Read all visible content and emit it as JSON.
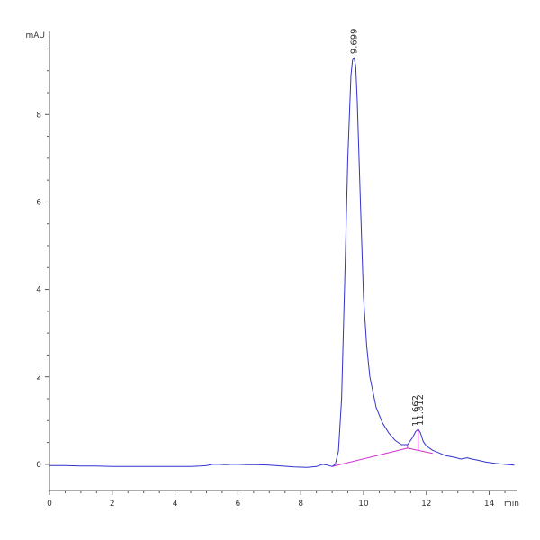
{
  "chart_data": {
    "type": "line",
    "title": "",
    "y_unit_label": "mAU",
    "x_unit_label": "min",
    "xlim": [
      0,
      14.9
    ],
    "ylim": [
      -0.6,
      9.9
    ],
    "x_ticks": [
      0,
      2,
      4,
      6,
      8,
      10,
      12,
      14
    ],
    "y_ticks": [
      0,
      2,
      4,
      6,
      8
    ],
    "grid": false,
    "colors": {
      "trace": "#3333cc",
      "baseline": "#cc33cc",
      "axis": "#555555"
    },
    "series": [
      {
        "x": [
          0,
          0.5,
          1,
          1.5,
          2,
          2.5,
          3,
          3.5,
          4,
          4.5,
          4.8,
          5.0,
          5.2,
          5.4,
          5.6,
          5.8,
          6.0,
          6.3,
          6.6,
          7.0,
          7.4,
          7.8,
          8.2,
          8.5,
          8.7,
          8.85,
          9.0,
          9.1,
          9.2,
          9.3,
          9.4,
          9.5,
          9.6,
          9.65,
          9.7,
          9.75,
          9.8,
          9.9,
          10.0,
          10.1,
          10.2,
          10.4,
          10.6,
          10.8,
          11.0,
          11.2,
          11.4,
          11.55,
          11.66,
          11.74,
          11.81,
          11.9,
          12.0,
          12.2,
          12.4,
          12.6,
          12.9,
          13.1,
          13.3,
          13.45,
          13.6,
          13.9,
          14.2,
          14.5,
          14.8
        ],
        "y": [
          -0.03,
          -0.03,
          -0.04,
          -0.04,
          -0.05,
          -0.05,
          -0.05,
          -0.05,
          -0.05,
          -0.05,
          -0.04,
          -0.03,
          0.0,
          0.0,
          -0.01,
          0.0,
          0.0,
          -0.01,
          -0.01,
          -0.02,
          -0.04,
          -0.06,
          -0.07,
          -0.05,
          0.0,
          -0.02,
          -0.05,
          0.0,
          0.3,
          1.5,
          4.2,
          7.0,
          8.9,
          9.25,
          9.3,
          9.1,
          8.3,
          6.0,
          3.8,
          2.7,
          2.0,
          1.3,
          0.95,
          0.72,
          0.55,
          0.45,
          0.45,
          0.6,
          0.75,
          0.8,
          0.72,
          0.52,
          0.42,
          0.32,
          0.26,
          0.2,
          0.16,
          0.12,
          0.15,
          0.12,
          0.1,
          0.05,
          0.02,
          0.0,
          -0.02
        ]
      }
    ],
    "baseline_segments": [
      {
        "x": [
          9.0,
          11.4
        ],
        "y": [
          -0.05,
          0.37
        ]
      },
      {
        "x": [
          11.4,
          12.2
        ],
        "y": [
          0.37,
          0.25
        ]
      }
    ],
    "peak_drop_lines": [
      {
        "x": 11.4,
        "y_top": 0.45,
        "y_bottom": 0.37
      },
      {
        "x": 11.74,
        "y_top": 0.8,
        "y_bottom": 0.32
      }
    ],
    "peak_labels": [
      {
        "x": 9.699,
        "y": 9.3,
        "text": "9.699"
      },
      {
        "x": 11.662,
        "y": 0.78,
        "text": "11.662"
      },
      {
        "x": 11.812,
        "y": 0.8,
        "text": "11.812"
      }
    ]
  }
}
